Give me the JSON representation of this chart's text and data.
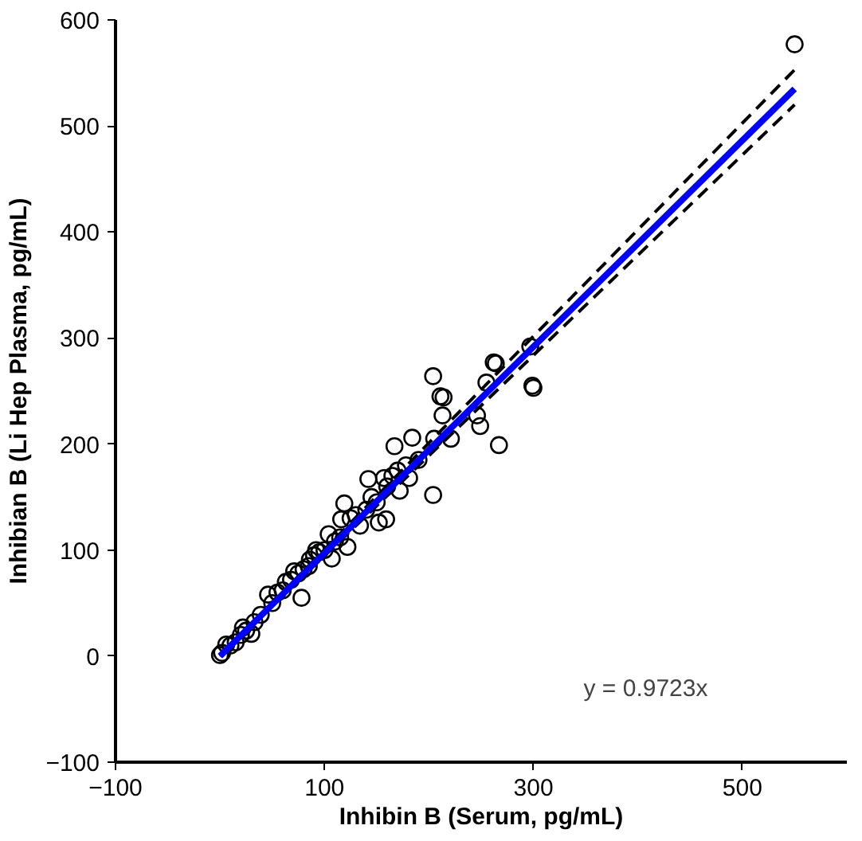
{
  "chart_data": {
    "type": "scatter",
    "xlabel": "Inhibin B (Serum, pg/mL)",
    "ylabel": "Inhibian B (Li Hep Plasma, pg/mL)",
    "xlim": [
      -100,
      600
    ],
    "ylim": [
      -100,
      600
    ],
    "xticks": [
      -100,
      100,
      300,
      500
    ],
    "yticks": [
      -100,
      0,
      100,
      200,
      300,
      400,
      500,
      600
    ],
    "grid": false,
    "annotations": [
      "y = 0.9723x"
    ],
    "series": [
      {
        "marker": "circle",
        "color": "#000000",
        "x": [
          0,
          2,
          6,
          10,
          15,
          20,
          22,
          25,
          30,
          33,
          39,
          46,
          50,
          55,
          60,
          63,
          68,
          71,
          75,
          78,
          80,
          85,
          86,
          90,
          92,
          95,
          100,
          104,
          107,
          110,
          115,
          116,
          119,
          122,
          125,
          130,
          134,
          140,
          142,
          145,
          150,
          152,
          157,
          159,
          160,
          165,
          167,
          170,
          172,
          178,
          181,
          184,
          190,
          204,
          204,
          205,
          211,
          213,
          214,
          221,
          246,
          249,
          255,
          262,
          264,
          267,
          297,
          299,
          300,
          550
        ],
        "values": [
          1,
          3,
          11,
          10,
          13,
          20,
          27,
          24,
          21,
          32,
          39,
          58,
          50,
          60,
          62,
          70,
          72,
          80,
          78,
          55,
          82,
          85,
          91,
          95,
          100,
          98,
          100,
          115,
          92,
          108,
          112,
          129,
          144,
          103,
          130,
          133,
          123,
          138,
          167,
          150,
          145,
          126,
          168,
          129,
          160,
          170,
          198,
          175,
          156,
          180,
          168,
          206,
          185,
          152,
          264,
          205,
          245,
          227,
          244,
          205,
          227,
          217,
          258,
          277,
          276,
          199,
          292,
          255,
          253,
          577
        ]
      },
      {
        "type": "line",
        "color": "#000000",
        "line_style": "dashed",
        "x": [
          0,
          550
        ],
        "values": [
          0,
          553
        ]
      },
      {
        "type": "line",
        "color": "#000000",
        "line_style": "dashed",
        "x": [
          0,
          550
        ],
        "values": [
          0,
          520
        ]
      },
      {
        "type": "line",
        "color": "#0000ff",
        "x": [
          0,
          550
        ],
        "values": [
          0,
          535
        ]
      }
    ]
  }
}
